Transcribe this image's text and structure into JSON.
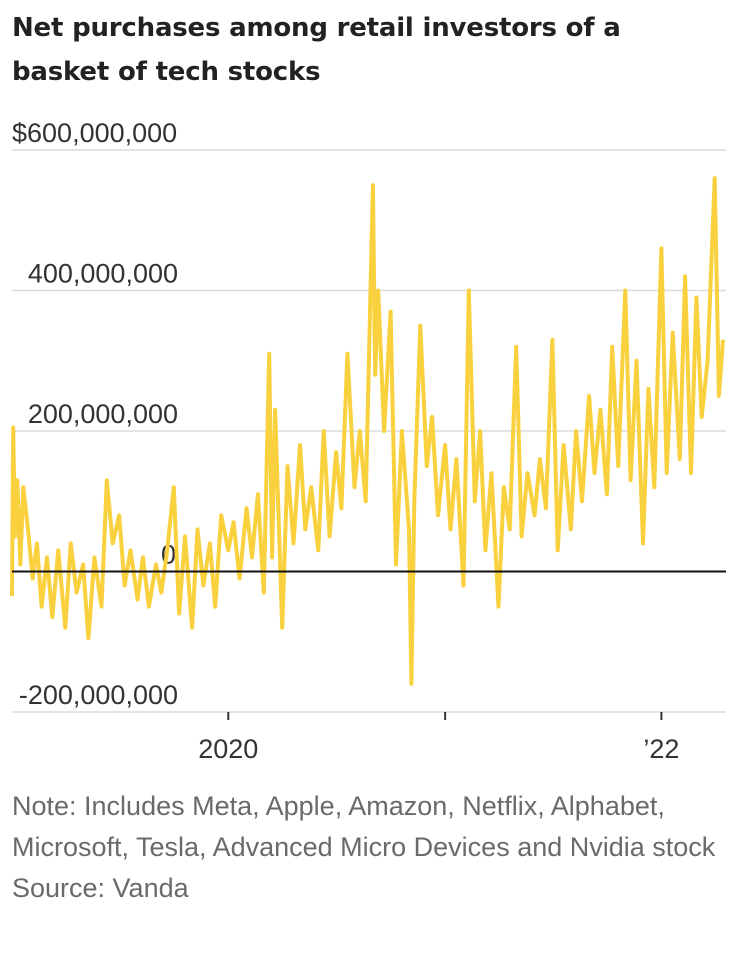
{
  "chart_data": {
    "type": "line",
    "title": "Net purchases among retail investors of a basket of tech stocks",
    "xlabel": "",
    "ylabel": "",
    "y_tick_labels": [
      "$600,000,000",
      "400,000,000",
      "200,000,000",
      "0",
      "-200,000,000"
    ],
    "y_ticks": [
      600000000,
      400000000,
      200000000,
      0,
      -200000000
    ],
    "ylim": [
      -200000000,
      600000000
    ],
    "x_tick_labels": [
      "2020",
      "’22"
    ],
    "x_label_ticks": [
      "2020-01-01",
      "2022-01-01"
    ],
    "x_minor_ticks": [
      "2021-01-01"
    ],
    "xlim": [
      "2019-01-01",
      "2022-04-20"
    ],
    "x_start": "2019-01-01",
    "x_end": "2022-04-15",
    "grid": true,
    "series_color": "#F9D13E",
    "series": [
      {
        "name": "",
        "points": [
          [
            "2019-01-01",
            -35000000
          ],
          [
            "2019-01-03",
            205000000
          ],
          [
            "2019-01-06",
            50000000
          ],
          [
            "2019-01-10",
            130000000
          ],
          [
            "2019-01-15",
            10000000
          ],
          [
            "2019-01-20",
            120000000
          ],
          [
            "2019-01-28",
            60000000
          ],
          [
            "2019-02-05",
            -10000000
          ],
          [
            "2019-02-12",
            40000000
          ],
          [
            "2019-02-20",
            -50000000
          ],
          [
            "2019-03-01",
            20000000
          ],
          [
            "2019-03-10",
            -65000000
          ],
          [
            "2019-03-20",
            30000000
          ],
          [
            "2019-04-01",
            -80000000
          ],
          [
            "2019-04-10",
            40000000
          ],
          [
            "2019-04-20",
            -30000000
          ],
          [
            "2019-05-01",
            10000000
          ],
          [
            "2019-05-10",
            -95000000
          ],
          [
            "2019-05-20",
            20000000
          ],
          [
            "2019-06-01",
            -50000000
          ],
          [
            "2019-06-10",
            130000000
          ],
          [
            "2019-06-20",
            40000000
          ],
          [
            "2019-07-01",
            80000000
          ],
          [
            "2019-07-10",
            -20000000
          ],
          [
            "2019-07-20",
            30000000
          ],
          [
            "2019-08-01",
            -40000000
          ],
          [
            "2019-08-10",
            20000000
          ],
          [
            "2019-08-20",
            -50000000
          ],
          [
            "2019-09-01",
            10000000
          ],
          [
            "2019-09-10",
            -30000000
          ],
          [
            "2019-09-20",
            30000000
          ],
          [
            "2019-10-01",
            120000000
          ],
          [
            "2019-10-10",
            -60000000
          ],
          [
            "2019-10-20",
            50000000
          ],
          [
            "2019-11-01",
            -80000000
          ],
          [
            "2019-11-10",
            60000000
          ],
          [
            "2019-11-20",
            -20000000
          ],
          [
            "2019-12-01",
            40000000
          ],
          [
            "2019-12-10",
            -50000000
          ],
          [
            "2019-12-20",
            80000000
          ],
          [
            "2020-01-01",
            30000000
          ],
          [
            "2020-01-10",
            70000000
          ],
          [
            "2020-01-20",
            -10000000
          ],
          [
            "2020-02-01",
            90000000
          ],
          [
            "2020-02-10",
            20000000
          ],
          [
            "2020-02-20",
            110000000
          ],
          [
            "2020-03-01",
            -30000000
          ],
          [
            "2020-03-10",
            310000000
          ],
          [
            "2020-03-15",
            20000000
          ],
          [
            "2020-03-20",
            230000000
          ],
          [
            "2020-04-01",
            -80000000
          ],
          [
            "2020-04-10",
            150000000
          ],
          [
            "2020-04-20",
            40000000
          ],
          [
            "2020-05-01",
            180000000
          ],
          [
            "2020-05-10",
            60000000
          ],
          [
            "2020-05-20",
            120000000
          ],
          [
            "2020-06-01",
            30000000
          ],
          [
            "2020-06-10",
            200000000
          ],
          [
            "2020-06-20",
            50000000
          ],
          [
            "2020-07-01",
            170000000
          ],
          [
            "2020-07-10",
            90000000
          ],
          [
            "2020-07-20",
            310000000
          ],
          [
            "2020-08-01",
            120000000
          ],
          [
            "2020-08-10",
            200000000
          ],
          [
            "2020-08-20",
            100000000
          ],
          [
            "2020-09-01",
            550000000
          ],
          [
            "2020-09-05",
            280000000
          ],
          [
            "2020-09-10",
            400000000
          ],
          [
            "2020-09-20",
            200000000
          ],
          [
            "2020-10-01",
            370000000
          ],
          [
            "2020-10-10",
            10000000
          ],
          [
            "2020-10-20",
            200000000
          ],
          [
            "2020-11-01",
            60000000
          ],
          [
            "2020-11-05",
            -160000000
          ],
          [
            "2020-11-10",
            100000000
          ],
          [
            "2020-11-20",
            350000000
          ],
          [
            "2020-12-01",
            150000000
          ],
          [
            "2020-12-10",
            220000000
          ],
          [
            "2020-12-20",
            80000000
          ],
          [
            "2021-01-01",
            180000000
          ],
          [
            "2021-01-10",
            60000000
          ],
          [
            "2021-01-20",
            160000000
          ],
          [
            "2021-02-01",
            -20000000
          ],
          [
            "2021-02-10",
            400000000
          ],
          [
            "2021-02-20",
            100000000
          ],
          [
            "2021-03-01",
            200000000
          ],
          [
            "2021-03-10",
            30000000
          ],
          [
            "2021-03-20",
            140000000
          ],
          [
            "2021-04-01",
            -50000000
          ],
          [
            "2021-04-10",
            120000000
          ],
          [
            "2021-04-20",
            60000000
          ],
          [
            "2021-05-01",
            320000000
          ],
          [
            "2021-05-10",
            50000000
          ],
          [
            "2021-05-20",
            140000000
          ],
          [
            "2021-06-01",
            80000000
          ],
          [
            "2021-06-10",
            160000000
          ],
          [
            "2021-06-20",
            90000000
          ],
          [
            "2021-07-01",
            330000000
          ],
          [
            "2021-07-10",
            30000000
          ],
          [
            "2021-07-20",
            180000000
          ],
          [
            "2021-08-01",
            60000000
          ],
          [
            "2021-08-10",
            200000000
          ],
          [
            "2021-08-20",
            100000000
          ],
          [
            "2021-09-01",
            250000000
          ],
          [
            "2021-09-10",
            140000000
          ],
          [
            "2021-09-20",
            230000000
          ],
          [
            "2021-10-01",
            110000000
          ],
          [
            "2021-10-10",
            320000000
          ],
          [
            "2021-10-20",
            150000000
          ],
          [
            "2021-11-01",
            400000000
          ],
          [
            "2021-11-10",
            130000000
          ],
          [
            "2021-11-20",
            300000000
          ],
          [
            "2021-12-01",
            40000000
          ],
          [
            "2021-12-10",
            260000000
          ],
          [
            "2021-12-20",
            120000000
          ],
          [
            "2022-01-01",
            460000000
          ],
          [
            "2022-01-10",
            140000000
          ],
          [
            "2022-01-20",
            340000000
          ],
          [
            "2022-02-01",
            160000000
          ],
          [
            "2022-02-10",
            420000000
          ],
          [
            "2022-02-20",
            140000000
          ],
          [
            "2022-03-01",
            390000000
          ],
          [
            "2022-03-10",
            220000000
          ],
          [
            "2022-03-20",
            300000000
          ],
          [
            "2022-04-01",
            560000000
          ],
          [
            "2022-04-08",
            250000000
          ],
          [
            "2022-04-15",
            330000000
          ]
        ]
      }
    ]
  },
  "notes": {
    "note": "Note: Includes Meta, Apple, Amazon, Netflix, Alphabet, Microsoft, Tesla, Advanced Micro Devices and Nvidia stock",
    "source": "Source: Vanda"
  }
}
